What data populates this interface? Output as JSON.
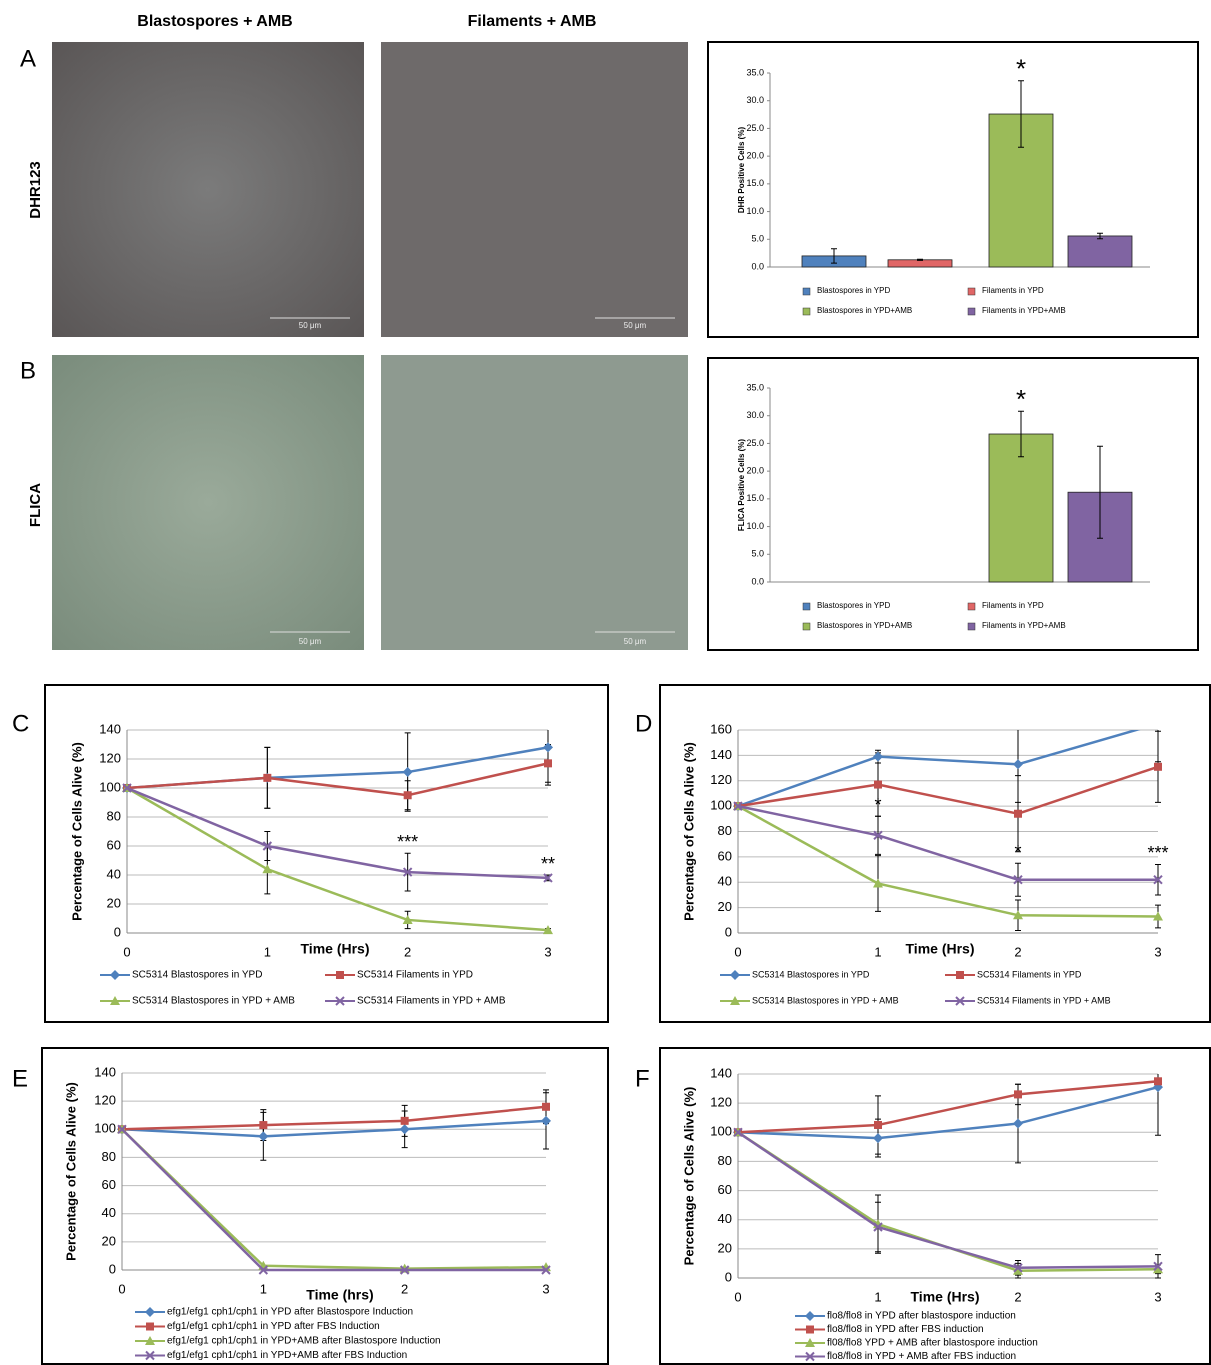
{
  "micrographs": {
    "column_titles": [
      "Blastospores + AMB",
      "Filaments + AMB"
    ],
    "row_labels": [
      "DHR123",
      "FLICA"
    ],
    "scale_bar": "50 μm"
  },
  "chart_data": [
    {
      "type": "bar",
      "panel": "A",
      "ylabel": "DHR Positive Cells (%)",
      "ylim": [
        0,
        35
      ],
      "yticks": [
        {
          "value": 0,
          "label": "0.0"
        },
        {
          "value": 5,
          "label": "5.0"
        },
        {
          "value": 10,
          "label": "10.0"
        },
        {
          "value": 15,
          "label": "15.0"
        },
        {
          "value": 20,
          "label": "20.0"
        },
        {
          "value": 25,
          "label": "25.0"
        },
        {
          "value": 30,
          "label": "30.0"
        },
        {
          "value": 35,
          "label": "35.0"
        }
      ],
      "series": [
        {
          "name": "Blastospores in YPD",
          "color": "#4f81bd",
          "values": [
            2.0
          ],
          "errors": [
            1.3
          ]
        },
        {
          "name": "Filaments in YPD",
          "color": "#e06666",
          "values": [
            1.3
          ],
          "errors": [
            0.1
          ]
        },
        {
          "name": "Blastospores in YPD+AMB",
          "color": "#9bbb59",
          "values": [
            27.6
          ],
          "errors": [
            6.0
          ]
        },
        {
          "name": "Filaments in YPD+AMB",
          "color": "#8064a2",
          "values": [
            5.6
          ],
          "errors": [
            0.5
          ]
        }
      ],
      "annotations": [
        {
          "text": "*",
          "series": 2
        }
      ],
      "legend": "bottom"
    },
    {
      "type": "bar",
      "panel": "B",
      "ylabel": "FLICA Positive Cells (%)",
      "ylim": [
        0,
        35
      ],
      "yticks": [
        {
          "value": 0,
          "label": "0.0"
        },
        {
          "value": 5,
          "label": "5.0"
        },
        {
          "value": 10,
          "label": "10.0"
        },
        {
          "value": 15,
          "label": "15.0"
        },
        {
          "value": 20,
          "label": "20.0"
        },
        {
          "value": 25,
          "label": "25.0"
        },
        {
          "value": 30,
          "label": "30.0"
        },
        {
          "value": 35,
          "label": "35.0"
        }
      ],
      "series": [
        {
          "name": "Blastospores in YPD",
          "color": "#4f81bd",
          "values": [
            0
          ],
          "errors": [
            0
          ]
        },
        {
          "name": "Filaments in YPD",
          "color": "#e06666",
          "values": [
            0
          ],
          "errors": [
            0
          ]
        },
        {
          "name": "Blastospores in YPD+AMB",
          "color": "#9bbb59",
          "values": [
            26.7
          ],
          "errors": [
            4.1
          ]
        },
        {
          "name": "Filaments in YPD+AMB",
          "color": "#8064a2",
          "values": [
            16.2
          ],
          "errors": [
            8.3
          ]
        }
      ],
      "annotations": [
        {
          "text": "*",
          "series": 2
        }
      ],
      "legend": "bottom"
    },
    {
      "type": "line",
      "panel": "C",
      "xlabel": "Time (Hrs)",
      "ylabel": "Percentage of Cells Alive (%)",
      "x": [
        0,
        1,
        2,
        3
      ],
      "xlim": [
        0,
        3
      ],
      "xticks": [
        0,
        1,
        2,
        3
      ],
      "ylim": [
        0,
        140
      ],
      "yticks": [
        0,
        20,
        40,
        60,
        80,
        100,
        120,
        140
      ],
      "grid": true,
      "series": [
        {
          "name": "SC5314 Blastospores in YPD",
          "color": "#4f81bd",
          "marker": "diamond",
          "values": [
            100,
            107,
            111,
            128
          ],
          "errors": [
            0,
            21,
            27,
            26
          ]
        },
        {
          "name": "SC5314 Filaments in YPD",
          "color": "#c0504d",
          "marker": "square",
          "values": [
            100,
            107,
            95,
            117
          ],
          "errors": [
            0,
            21,
            10,
            13
          ]
        },
        {
          "name": "SC5314 Blastospores in YPD + AMB",
          "color": "#9bbb59",
          "marker": "triangle",
          "values": [
            100,
            44,
            9,
            2
          ],
          "errors": [
            0,
            17,
            6,
            1
          ]
        },
        {
          "name": "SC5314 Filaments in YPD + AMB",
          "color": "#8064a2",
          "marker": "x",
          "values": [
            100,
            60,
            42,
            38
          ],
          "errors": [
            0,
            10,
            13,
            2
          ]
        }
      ],
      "annotations": [
        {
          "text": "***",
          "x": 2,
          "series": 3
        },
        {
          "text": "**",
          "x": 3,
          "series": 3
        }
      ],
      "legend": "bottom"
    },
    {
      "type": "line",
      "panel": "D",
      "xlabel": "Time (Hrs)",
      "ylabel": "Percentage of Cells Alive (%)",
      "x": [
        0,
        1,
        2,
        3
      ],
      "xlim": [
        0,
        3
      ],
      "xticks": [
        0,
        1,
        2,
        3
      ],
      "ylim": [
        0,
        160
      ],
      "yticks": [
        0,
        20,
        40,
        60,
        80,
        100,
        120,
        140,
        160
      ],
      "grid": true,
      "series": [
        {
          "name": "SC5314 Blastospores  in YPD",
          "color": "#4f81bd",
          "marker": "diamond",
          "values": [
            100,
            139,
            133,
            165
          ],
          "errors": [
            0,
            5,
            30,
            30
          ]
        },
        {
          "name": "SC5314 Filaments  in YPD",
          "color": "#c0504d",
          "marker": "square",
          "values": [
            100,
            117,
            94,
            131
          ],
          "errors": [
            0,
            25,
            30,
            28
          ]
        },
        {
          "name": "SC5314 Blastospores  in YPD + AMB",
          "color": "#9bbb59",
          "marker": "triangle",
          "values": [
            100,
            39,
            14,
            13
          ],
          "errors": [
            0,
            22,
            12,
            9
          ]
        },
        {
          "name": "SC5314 Filaments  in YPD + AMB",
          "color": "#8064a2",
          "marker": "x",
          "values": [
            100,
            77,
            42,
            42
          ],
          "errors": [
            0,
            15,
            13,
            12
          ]
        }
      ],
      "annotations": [
        {
          "text": "*",
          "x": 1,
          "series": 3
        },
        {
          "text": "*",
          "x": 2,
          "series": 3
        },
        {
          "text": "***",
          "x": 3,
          "series": 3
        }
      ],
      "legend": "bottom"
    },
    {
      "type": "line",
      "panel": "E",
      "xlabel": "Time (hrs)",
      "ylabel": "Percentage of Cells Alive (%)",
      "x": [
        0,
        1,
        2,
        3
      ],
      "xlim": [
        0,
        3
      ],
      "xticks": [
        0,
        1,
        2,
        3
      ],
      "ylim": [
        0,
        140
      ],
      "yticks": [
        0,
        20,
        40,
        60,
        80,
        100,
        120,
        140
      ],
      "grid": true,
      "series": [
        {
          "name": "efg1/efg1 cph1/cph1 in YPD after Blastospore Induction",
          "color": "#4f81bd",
          "marker": "diamond",
          "values": [
            100,
            95,
            100,
            106
          ],
          "errors": [
            0,
            17,
            13,
            20
          ]
        },
        {
          "name": "efg1/efg1 cph1/cph1 in YPD after FBS Induction",
          "color": "#c0504d",
          "marker": "square",
          "values": [
            100,
            103,
            106,
            116
          ],
          "errors": [
            0,
            11,
            11,
            12
          ]
        },
        {
          "name": "efg1/efg1 cph1/cph1 in YPD+AMB after Blastospore Induction",
          "color": "#9bbb59",
          "marker": "triangle",
          "values": [
            100,
            3,
            1,
            2
          ],
          "errors": [
            0,
            0,
            0,
            0
          ]
        },
        {
          "name": "efg1/efg1 cph1/cph1 in YPD+AMB after FBS Induction",
          "color": "#8064a2",
          "marker": "x",
          "values": [
            100,
            0,
            0,
            0
          ],
          "errors": [
            0,
            0,
            0,
            0
          ]
        }
      ],
      "legend": "bottom"
    },
    {
      "type": "line",
      "panel": "F",
      "xlabel": "Time (Hrs)",
      "ylabel": "Percentage of Cells Alive (%)",
      "x": [
        0,
        1,
        2,
        3
      ],
      "xlim": [
        0,
        3
      ],
      "xticks": [
        0,
        1,
        2,
        3
      ],
      "ylim": [
        0,
        140
      ],
      "yticks": [
        0,
        20,
        40,
        60,
        80,
        100,
        120,
        140
      ],
      "grid": true,
      "series": [
        {
          "name": "flo8/flo8 in YPD after blastospore induction",
          "color": "#4f81bd",
          "marker": "diamond",
          "values": [
            100,
            96,
            106,
            131
          ],
          "errors": [
            0,
            13,
            27,
            33
          ]
        },
        {
          "name": "flo8/flo8 in YPD after FBS induction",
          "color": "#c0504d",
          "marker": "square",
          "values": [
            100,
            105,
            126,
            135
          ],
          "errors": [
            0,
            20,
            7,
            2
          ]
        },
        {
          "name": "fl08/flo8 YPD + AMB after blastospore induction",
          "color": "#9bbb59",
          "marker": "triangle",
          "values": [
            100,
            37,
            5,
            6
          ],
          "errors": [
            0,
            20,
            5,
            3
          ]
        },
        {
          "name": "flo8/flo8 in YPD + AMB after FBS induction",
          "color": "#8064a2",
          "marker": "x",
          "values": [
            100,
            35,
            7,
            8
          ],
          "errors": [
            0,
            17,
            5,
            8
          ]
        }
      ],
      "legend": "bottom"
    }
  ]
}
